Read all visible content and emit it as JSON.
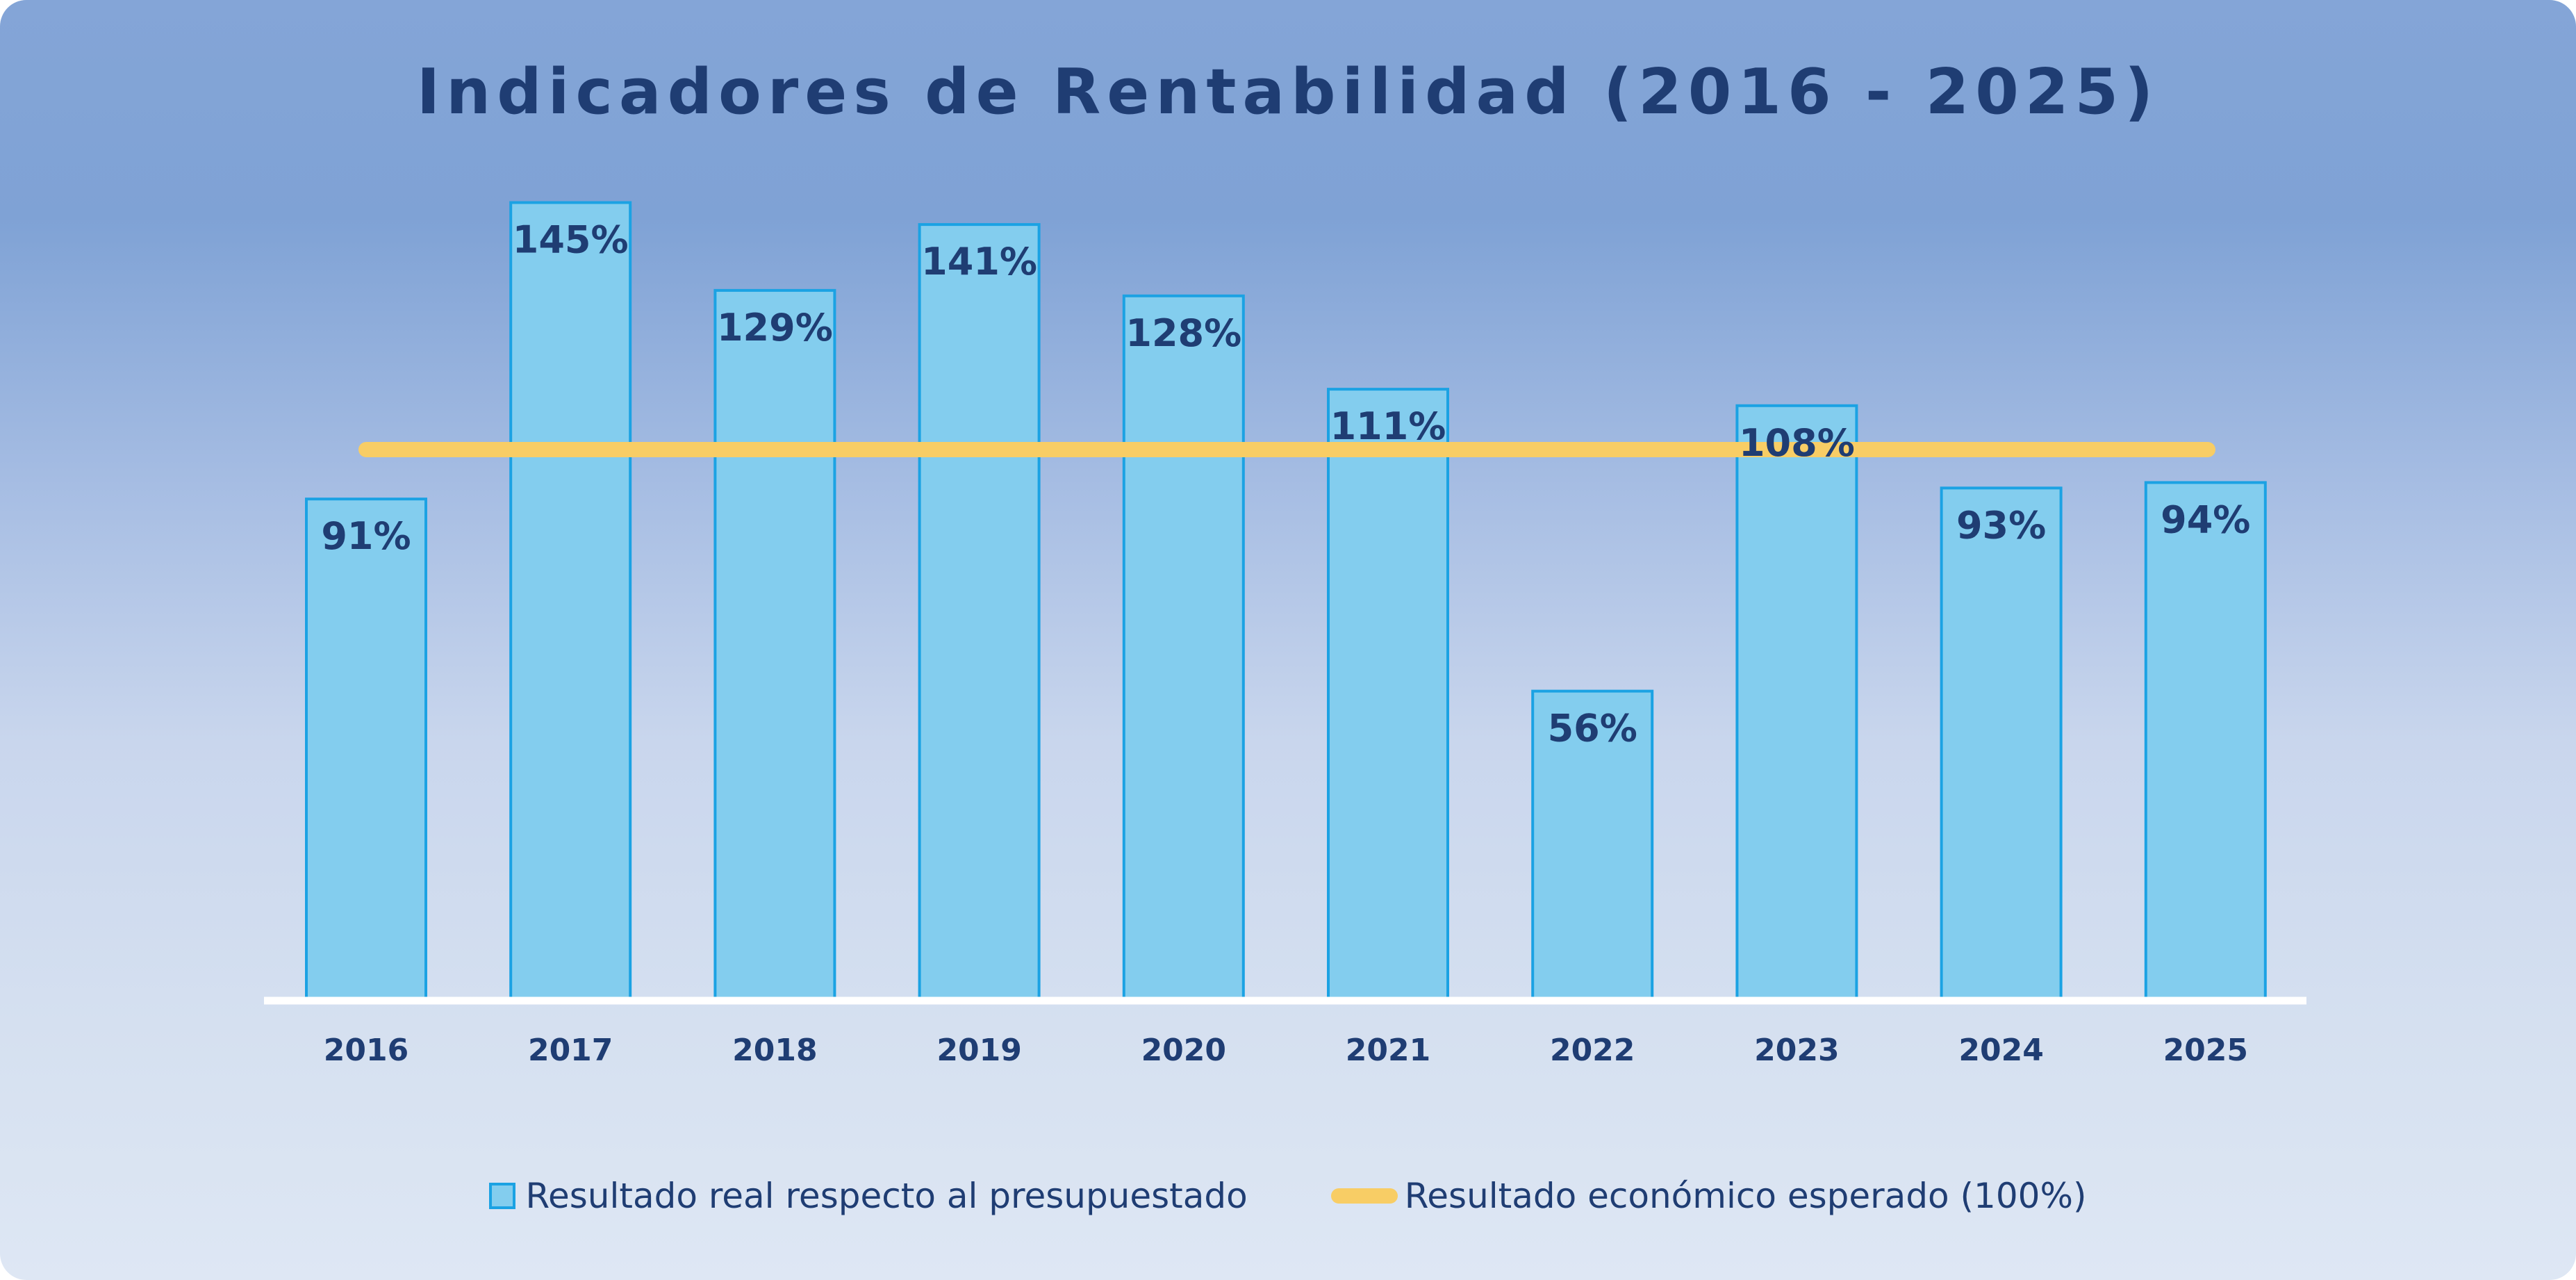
{
  "chart_data": {
    "type": "bar",
    "title": "Indicadores de Rentabilidad (2016 - 2025)",
    "categories": [
      "2016",
      "2017",
      "2018",
      "2019",
      "2020",
      "2021",
      "2022",
      "2023",
      "2024",
      "2025"
    ],
    "values": [
      91,
      145,
      129,
      141,
      128,
      111,
      56,
      108,
      93,
      94
    ],
    "data_labels": [
      "91%",
      "145%",
      "129%",
      "141%",
      "128%",
      "111%",
      "56%",
      "108%",
      "93%",
      "94%"
    ],
    "reference_line": {
      "value": 100,
      "name": "Resultado económico esperado (100%)"
    },
    "series_name": "Resultado real respecto al presupuestado",
    "ylim": [
      0,
      160
    ],
    "xlabel": "",
    "ylabel": "",
    "grid": false,
    "legend_position": "bottom-center",
    "colors": {
      "bar_fill": "#83cdee",
      "bar_stroke": "#1ba2e3",
      "reference_line": "#f8cd65",
      "axis": "#ffffff",
      "text": "#1f3d73"
    }
  }
}
